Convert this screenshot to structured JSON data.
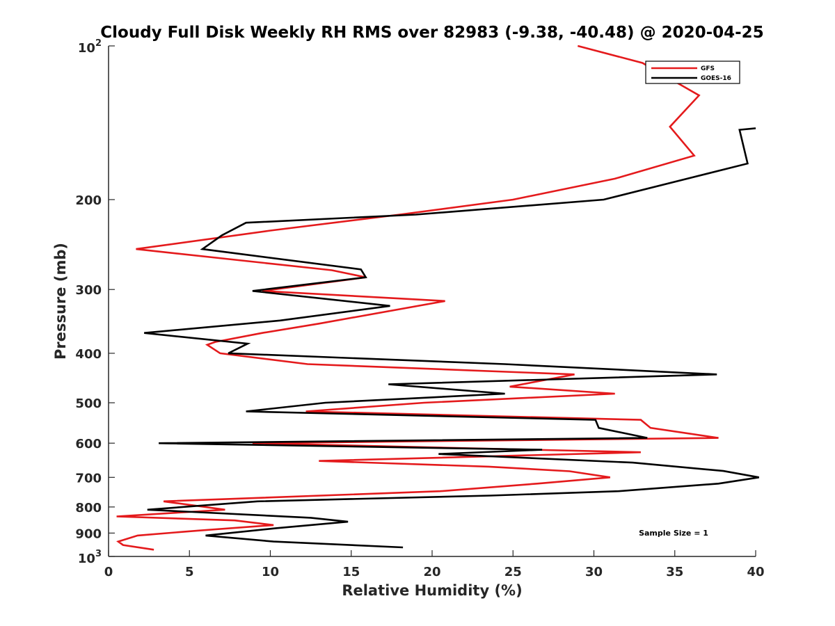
{
  "chart_data": {
    "type": "line",
    "title": "Cloudy Full Disk Weekly RH RMS over 82983 (-9.38, -40.48) @ 2020-04-25",
    "xlabel": "Relative Humidity (%)",
    "ylabel": "Pressure (mb)",
    "xlim": [
      0,
      40
    ],
    "ylim": [
      100,
      1000
    ],
    "y_scale": "log",
    "y_reversed": true,
    "grid": false,
    "legend_position": "top-right",
    "x_ticks": [
      "0",
      "5",
      "10",
      "15",
      "20",
      "25",
      "30",
      "35",
      "40"
    ],
    "y_ticks": [
      {
        "value": 100,
        "base": "10",
        "exp": "2"
      },
      {
        "value": 200,
        "label": "200"
      },
      {
        "value": 300,
        "label": "300"
      },
      {
        "value": 400,
        "label": "400"
      },
      {
        "value": 500,
        "label": "500"
      },
      {
        "value": 600,
        "label": "600"
      },
      {
        "value": 700,
        "label": "700"
      },
      {
        "value": 800,
        "label": "800"
      },
      {
        "value": 900,
        "label": "900"
      },
      {
        "value": 1000,
        "base": "10",
        "exp": "3"
      }
    ],
    "annotation": "Sample Size = 1",
    "series": [
      {
        "name": "GFS",
        "color": "#e41a1c",
        "points": [
          [
            29.0,
            100
          ],
          [
            33.0,
            108
          ],
          [
            36.5,
            125
          ],
          [
            34.7,
            144
          ],
          [
            36.2,
            164
          ],
          [
            31.3,
            182
          ],
          [
            25.0,
            200
          ],
          [
            18.0,
            214
          ],
          [
            10.0,
            230
          ],
          [
            1.7,
            250
          ],
          [
            13.8,
            275
          ],
          [
            15.9,
            284
          ],
          [
            9.5,
            302
          ],
          [
            20.8,
            316
          ],
          [
            13.0,
            350
          ],
          [
            9.5,
            365
          ],
          [
            6.6,
            380
          ],
          [
            6.1,
            385
          ],
          [
            6.9,
            400
          ],
          [
            12.3,
            420
          ],
          [
            28.8,
            440
          ],
          [
            24.8,
            465
          ],
          [
            31.3,
            480
          ],
          [
            19.5,
            500
          ],
          [
            12.2,
            520
          ],
          [
            32.9,
            540
          ],
          [
            33.5,
            560
          ],
          [
            37.7,
            586
          ],
          [
            8.9,
            600
          ],
          [
            32.9,
            625
          ],
          [
            13.0,
            650
          ],
          [
            23.5,
            667
          ],
          [
            28.5,
            681
          ],
          [
            31.0,
            700
          ],
          [
            26.5,
            720
          ],
          [
            20.5,
            745
          ],
          [
            3.4,
            780
          ],
          [
            7.2,
            810
          ],
          [
            0.5,
            835
          ],
          [
            7.8,
            850
          ],
          [
            10.2,
            868
          ],
          [
            5.5,
            890
          ],
          [
            1.8,
            910
          ],
          [
            0.6,
            935
          ],
          [
            0.9,
            950
          ],
          [
            2.8,
            970
          ]
        ]
      },
      {
        "name": "GOES-16",
        "color": "#000000",
        "points": [
          [
            40.0,
            145
          ],
          [
            39.0,
            146
          ],
          [
            39.5,
            170
          ],
          [
            30.6,
            200
          ],
          [
            19.0,
            214
          ],
          [
            8.5,
            222
          ],
          [
            7.0,
            235
          ],
          [
            5.8,
            250
          ],
          [
            15.6,
            274
          ],
          [
            15.9,
            284
          ],
          [
            8.9,
            302
          ],
          [
            17.4,
            323
          ],
          [
            10.6,
            345
          ],
          [
            2.2,
            365
          ],
          [
            8.6,
            383
          ],
          [
            7.4,
            400
          ],
          [
            24.5,
            420
          ],
          [
            37.6,
            440
          ],
          [
            17.3,
            460
          ],
          [
            24.5,
            480
          ],
          [
            13.4,
            500
          ],
          [
            8.5,
            520
          ],
          [
            30.1,
            540
          ],
          [
            30.3,
            560
          ],
          [
            33.3,
            586
          ],
          [
            3.1,
            600
          ],
          [
            26.8,
            618
          ],
          [
            20.4,
            630
          ],
          [
            32.4,
            655
          ],
          [
            38.0,
            680
          ],
          [
            40.2,
            700
          ],
          [
            37.7,
            720
          ],
          [
            31.5,
            745
          ],
          [
            23.6,
            760
          ],
          [
            9.2,
            780
          ],
          [
            2.4,
            810
          ],
          [
            12.5,
            840
          ],
          [
            14.8,
            855
          ],
          [
            10.4,
            880
          ],
          [
            6.0,
            910
          ],
          [
            10.2,
            935
          ],
          [
            18.2,
            960
          ]
        ]
      }
    ]
  }
}
